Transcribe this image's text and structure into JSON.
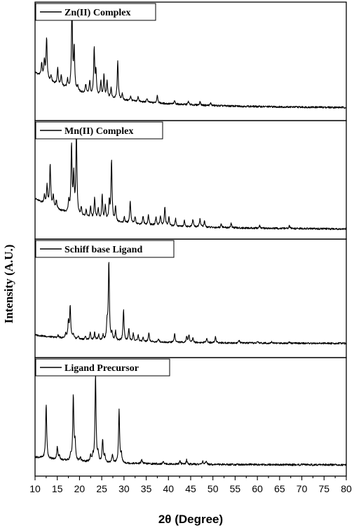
{
  "chart_data": {
    "type": "line",
    "xlabel": "2θ (Degree)",
    "ylabel": "Intensity (A.U.)",
    "xlim": [
      10,
      80
    ],
    "x_ticks": [
      10,
      15,
      20,
      25,
      30,
      35,
      40,
      45,
      50,
      55,
      60,
      65,
      70,
      75,
      80
    ],
    "series": [
      {
        "name": "Zn(II) Complex",
        "baseline": 0.27,
        "decay": 0.16,
        "peaks": [
          [
            11.5,
            0.16
          ],
          [
            12.1,
            0.21
          ],
          [
            12.6,
            0.5
          ],
          [
            13.6,
            0.07
          ],
          [
            15.1,
            0.2
          ],
          [
            15.9,
            0.13
          ],
          [
            17.3,
            0.1
          ],
          [
            18.3,
            1.0
          ],
          [
            18.8,
            0.5
          ],
          [
            19.6,
            0.06
          ],
          [
            21.4,
            0.11
          ],
          [
            22.3,
            0.16
          ],
          [
            23.3,
            0.55
          ],
          [
            23.7,
            0.28
          ],
          [
            24.8,
            0.18
          ],
          [
            25.5,
            0.26
          ],
          [
            26.2,
            0.2
          ],
          [
            27.1,
            0.12
          ],
          [
            28.6,
            0.46
          ],
          [
            29.6,
            0.07
          ],
          [
            31.5,
            0.06
          ],
          [
            33.2,
            0.06
          ],
          [
            35.2,
            0.05
          ],
          [
            37.5,
            0.1
          ],
          [
            41.4,
            0.04
          ],
          [
            44.5,
            0.04
          ],
          [
            47.1,
            0.04
          ],
          [
            49.5,
            0.03
          ]
        ]
      },
      {
        "name": "Mn(II) Complex",
        "baseline": 0.25,
        "decay": 0.12,
        "peaks": [
          [
            12.1,
            0.1
          ],
          [
            12.7,
            0.23
          ],
          [
            13.4,
            0.5
          ],
          [
            14.1,
            0.14
          ],
          [
            14.8,
            0.1
          ],
          [
            17.6,
            0.14
          ],
          [
            18.2,
            0.82
          ],
          [
            18.7,
            0.45
          ],
          [
            19.3,
            0.98
          ],
          [
            20.4,
            0.1
          ],
          [
            21.5,
            0.09
          ],
          [
            22.5,
            0.14
          ],
          [
            23.4,
            0.25
          ],
          [
            24.2,
            0.13
          ],
          [
            25.1,
            0.3
          ],
          [
            25.8,
            0.18
          ],
          [
            26.7,
            0.22
          ],
          [
            27.2,
            0.74
          ],
          [
            28.1,
            0.17
          ],
          [
            30.1,
            0.07
          ],
          [
            31.4,
            0.27
          ],
          [
            32.5,
            0.09
          ],
          [
            34.3,
            0.1
          ],
          [
            35.5,
            0.12
          ],
          [
            37.2,
            0.1
          ],
          [
            38.2,
            0.12
          ],
          [
            39.2,
            0.22
          ],
          [
            40.1,
            0.1
          ],
          [
            41.6,
            0.09
          ],
          [
            43.6,
            0.07
          ],
          [
            45.5,
            0.09
          ],
          [
            47.1,
            0.1
          ],
          [
            48.1,
            0.07
          ],
          [
            51.9,
            0.05
          ],
          [
            54.1,
            0.05
          ],
          [
            60.5,
            0.03
          ],
          [
            67.2,
            0.03
          ]
        ]
      },
      {
        "name": "Schiff base Ligand",
        "baseline": 0.05,
        "decay": 0.06,
        "peaks": [
          [
            15.2,
            0.03
          ],
          [
            16.9,
            0.06
          ],
          [
            17.5,
            0.2
          ],
          [
            17.9,
            0.4
          ],
          [
            18.6,
            0.05
          ],
          [
            19.7,
            0.04
          ],
          [
            21.3,
            0.04
          ],
          [
            22.4,
            0.09
          ],
          [
            23.4,
            0.09
          ],
          [
            24.3,
            0.07
          ],
          [
            25.3,
            0.06
          ],
          [
            26.2,
            0.22
          ],
          [
            26.6,
            1.0
          ],
          [
            27.3,
            0.09
          ],
          [
            28.1,
            0.12
          ],
          [
            29.9,
            0.4
          ],
          [
            31.1,
            0.16
          ],
          [
            32.1,
            0.1
          ],
          [
            33.2,
            0.08
          ],
          [
            34.3,
            0.05
          ],
          [
            35.6,
            0.11
          ],
          [
            37.8,
            0.04
          ],
          [
            41.4,
            0.11
          ],
          [
            44.1,
            0.07
          ],
          [
            44.6,
            0.1
          ],
          [
            45.5,
            0.06
          ],
          [
            48.6,
            0.06
          ],
          [
            50.6,
            0.08
          ],
          [
            55.9,
            0.03
          ],
          [
            60.1,
            0.02
          ],
          [
            63.2,
            0.02
          ],
          [
            67.2,
            0.02
          ]
        ]
      },
      {
        "name": "Ligand Precursor",
        "baseline": 0.06,
        "decay": 0.03,
        "peaks": [
          [
            12.5,
            0.62
          ],
          [
            15.0,
            0.15
          ],
          [
            15.5,
            0.05
          ],
          [
            18.0,
            0.06
          ],
          [
            18.6,
            0.75
          ],
          [
            19.0,
            0.2
          ],
          [
            20.2,
            0.04
          ],
          [
            22.5,
            0.07
          ],
          [
            23.0,
            0.06
          ],
          [
            23.6,
            1.0
          ],
          [
            24.2,
            0.09
          ],
          [
            25.2,
            0.26
          ],
          [
            25.7,
            0.08
          ],
          [
            27.4,
            0.1
          ],
          [
            28.9,
            0.6
          ],
          [
            29.4,
            0.1
          ],
          [
            34.0,
            0.05
          ],
          [
            38.9,
            0.03
          ],
          [
            42.6,
            0.04
          ],
          [
            44.1,
            0.05
          ],
          [
            47.7,
            0.04
          ],
          [
            48.5,
            0.03
          ]
        ]
      }
    ]
  }
}
